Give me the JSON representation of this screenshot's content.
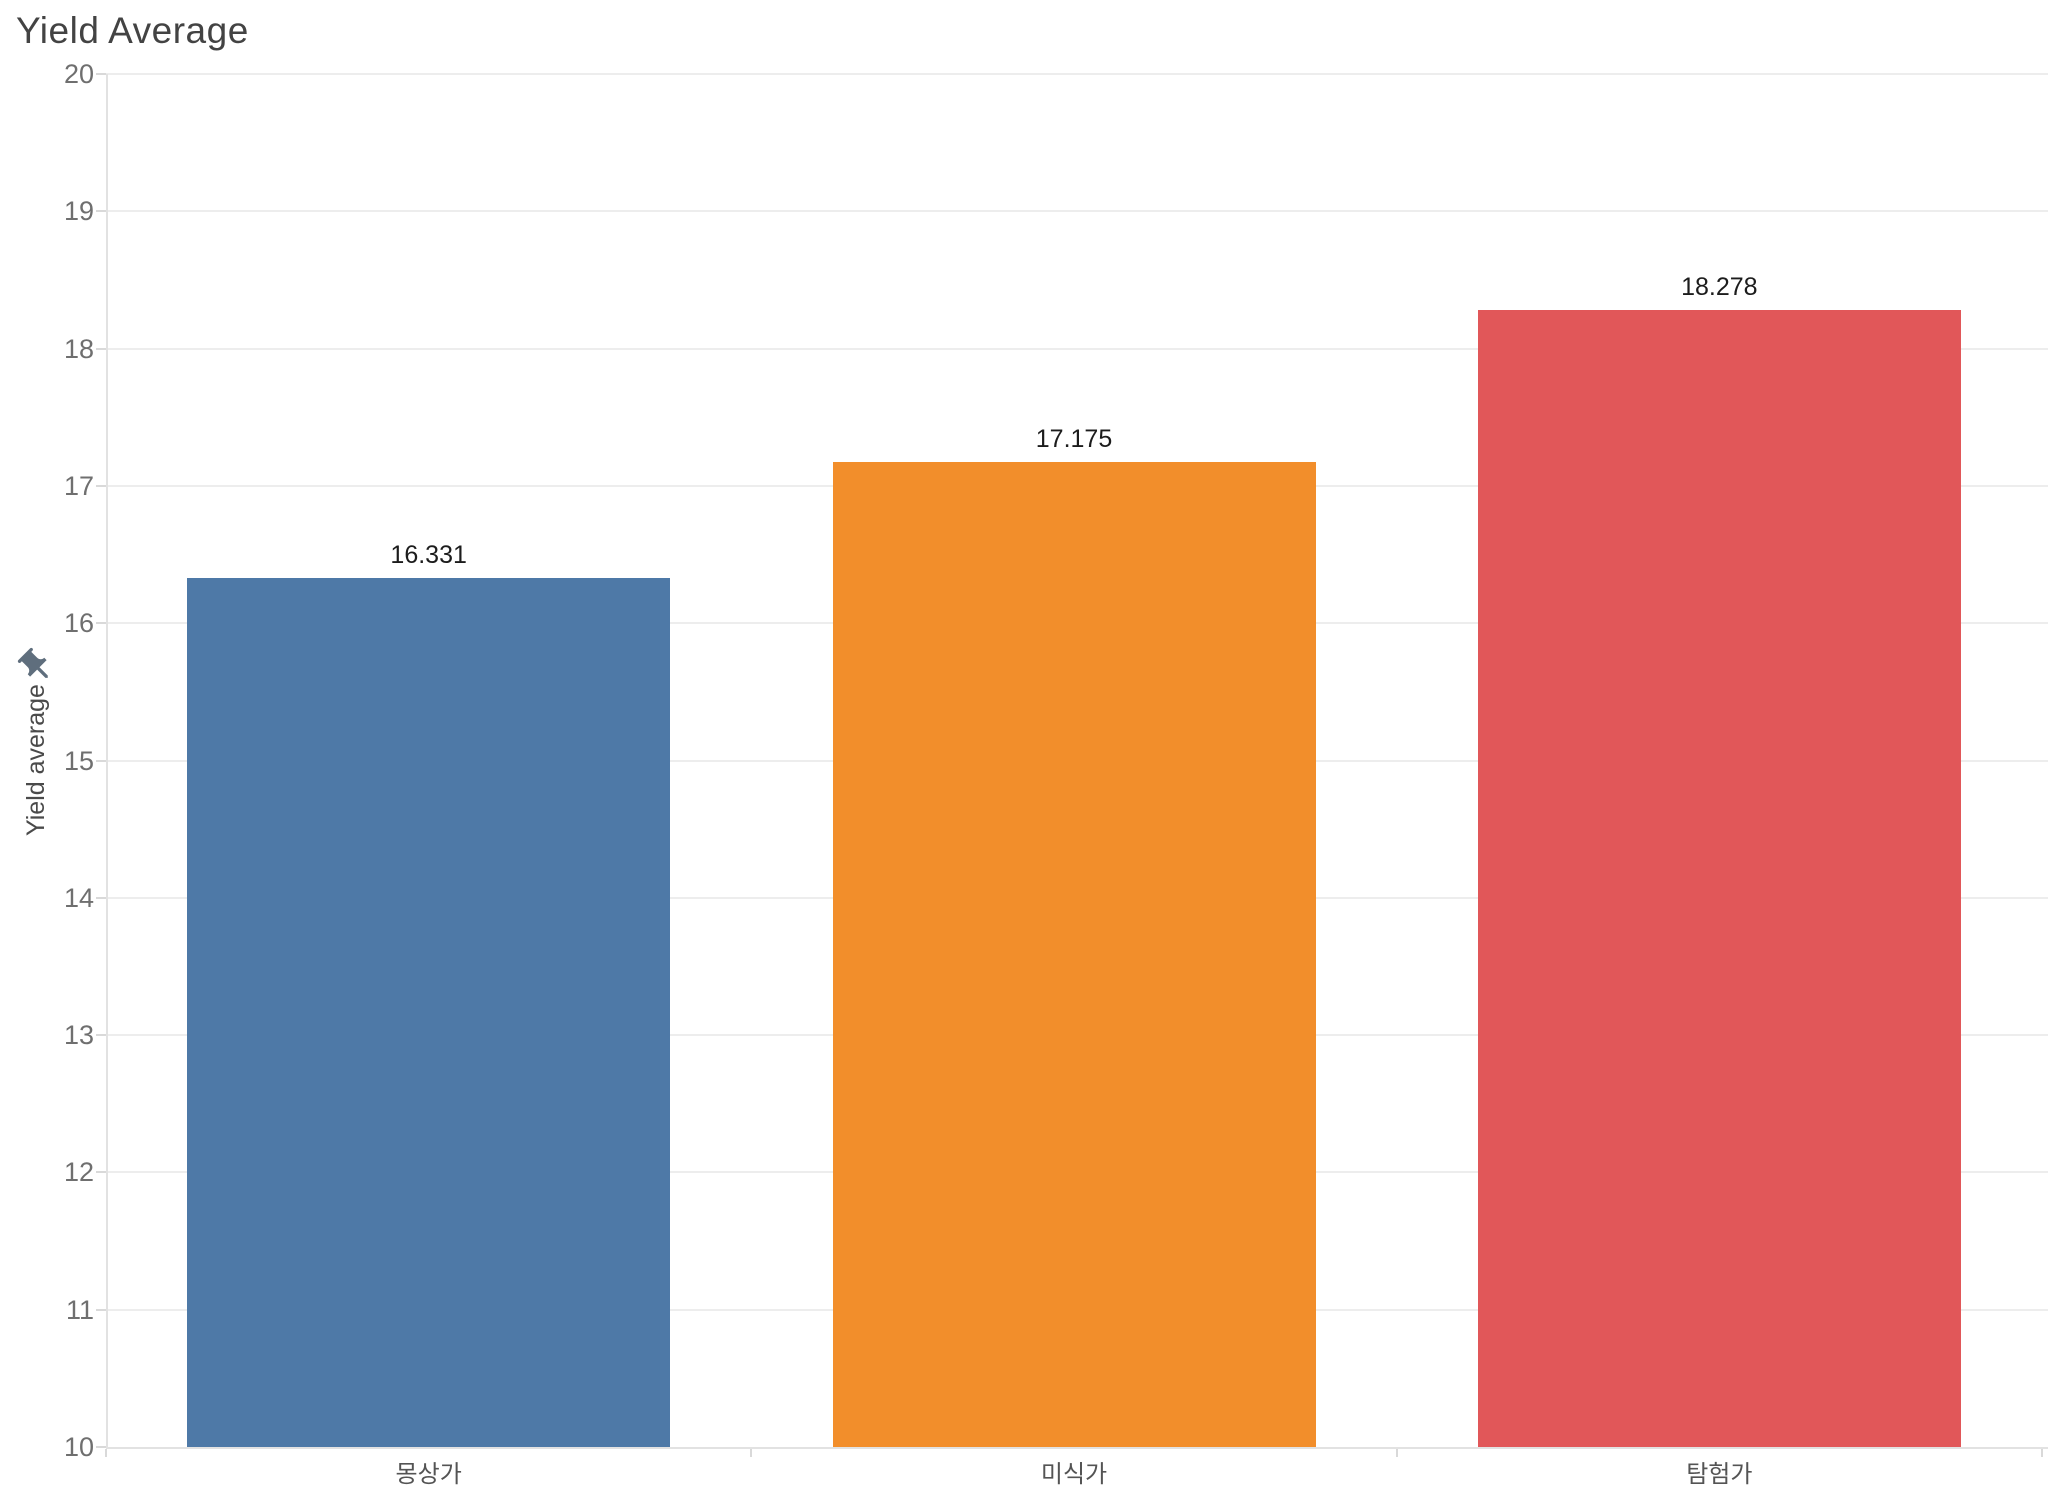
{
  "chart_data": {
    "type": "bar",
    "title": "Yield Average",
    "ylabel": "Yield average",
    "xlabel": "",
    "categories": [
      "몽상가",
      "미식가",
      "탐험가"
    ],
    "values": [
      16.331,
      17.175,
      18.278
    ],
    "value_labels": [
      "16.331",
      "17.175",
      "18.278"
    ],
    "bar_colors": [
      "#4e79a7",
      "#f28e2b",
      "#e15759"
    ],
    "ylim": [
      10,
      20
    ],
    "yticks": [
      10,
      11,
      12,
      13,
      14,
      15,
      16,
      17,
      18,
      19,
      20
    ],
    "ytick_labels": [
      "10",
      "11",
      "12",
      "13",
      "14",
      "15",
      "16",
      "17",
      "18",
      "19",
      "20"
    ],
    "grid": true,
    "legend_position": "none",
    "icons": {
      "pushpin": "pushpin-icon"
    },
    "colors": {
      "title_text": "#434343",
      "axis_title_text": "#4a4a4a",
      "tick_label_text": "#6f6f6f",
      "value_label_text": "#1c1c1c",
      "category_label_text": "#545454",
      "gridline": "#ededed",
      "axis_line": "#e2e2e2",
      "pin": "#5f6e7d"
    }
  }
}
